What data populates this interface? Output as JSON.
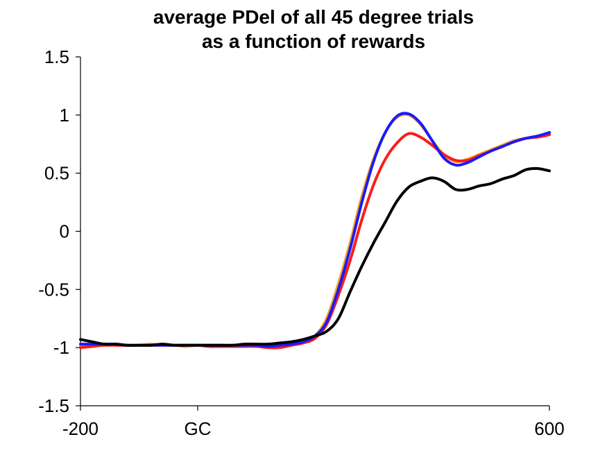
{
  "chart_data": {
    "type": "line",
    "title_lines": [
      "average PDel of all 45 degree trials",
      "as a function of rewards"
    ],
    "xlabel": "",
    "ylabel": "",
    "xlim": [
      -200,
      600
    ],
    "ylim": [
      -1.5,
      1.5
    ],
    "x_ticks": [
      {
        "value": -200,
        "label": "-200"
      },
      {
        "value": 0,
        "label": "GC"
      },
      {
        "value": 600,
        "label": "600"
      }
    ],
    "y_ticks": [
      {
        "value": 1.5,
        "label": "1.5"
      },
      {
        "value": 1,
        "label": "1"
      },
      {
        "value": 0.5,
        "label": "0.5"
      },
      {
        "value": 0,
        "label": "0"
      },
      {
        "value": -0.5,
        "label": "-0.5"
      },
      {
        "value": -1,
        "label": "-1"
      },
      {
        "value": -1.5,
        "label": "-1.5"
      }
    ],
    "grid": false,
    "legend": "none",
    "x": [
      -200,
      -180,
      -160,
      -140,
      -120,
      -100,
      -80,
      -60,
      -40,
      -20,
      0,
      20,
      40,
      60,
      80,
      100,
      120,
      140,
      160,
      180,
      200,
      220,
      240,
      260,
      280,
      300,
      320,
      340,
      360,
      380,
      400,
      420,
      440,
      460,
      480,
      500,
      520,
      540,
      560,
      580,
      600
    ],
    "series": [
      {
        "color": "#f5a21b",
        "values": [
          -0.99,
          -0.98,
          -0.97,
          -0.98,
          -0.98,
          -0.98,
          -0.97,
          -0.98,
          -0.98,
          -0.99,
          -0.98,
          -0.99,
          -0.98,
          -0.99,
          -0.98,
          -0.99,
          -0.99,
          -0.98,
          -0.97,
          -0.95,
          -0.9,
          -0.75,
          -0.45,
          -0.1,
          0.3,
          0.62,
          0.85,
          0.98,
          1.0,
          0.92,
          0.78,
          0.66,
          0.6,
          0.62,
          0.66,
          0.7,
          0.74,
          0.78,
          0.8,
          0.82,
          0.84
        ]
      },
      {
        "color": "#ff1a1a",
        "values": [
          -1.0,
          -0.99,
          -0.98,
          -0.98,
          -0.98,
          -0.98,
          -0.98,
          -0.98,
          -0.98,
          -0.98,
          -0.98,
          -0.99,
          -0.99,
          -0.99,
          -0.99,
          -0.99,
          -1.0,
          -1.0,
          -0.98,
          -0.96,
          -0.92,
          -0.8,
          -0.55,
          -0.25,
          0.1,
          0.4,
          0.62,
          0.76,
          0.84,
          0.81,
          0.74,
          0.66,
          0.61,
          0.61,
          0.65,
          0.69,
          0.73,
          0.77,
          0.8,
          0.81,
          0.83
        ]
      },
      {
        "color": "#1a1aff",
        "values": [
          -0.97,
          -0.97,
          -0.97,
          -0.97,
          -0.98,
          -0.98,
          -0.98,
          -0.98,
          -0.98,
          -0.98,
          -0.98,
          -0.98,
          -0.98,
          -0.98,
          -0.98,
          -0.98,
          -0.99,
          -0.98,
          -0.97,
          -0.95,
          -0.9,
          -0.78,
          -0.5,
          -0.15,
          0.25,
          0.6,
          0.85,
          0.99,
          1.01,
          0.93,
          0.78,
          0.63,
          0.57,
          0.59,
          0.64,
          0.69,
          0.73,
          0.77,
          0.8,
          0.82,
          0.85
        ]
      },
      {
        "color": "#000000",
        "values": [
          -0.93,
          -0.95,
          -0.97,
          -0.97,
          -0.98,
          -0.98,
          -0.98,
          -0.97,
          -0.98,
          -0.98,
          -0.98,
          -0.98,
          -0.98,
          -0.98,
          -0.97,
          -0.97,
          -0.97,
          -0.96,
          -0.95,
          -0.93,
          -0.9,
          -0.86,
          -0.75,
          -0.52,
          -0.3,
          -0.1,
          0.08,
          0.26,
          0.38,
          0.43,
          0.46,
          0.43,
          0.36,
          0.36,
          0.39,
          0.41,
          0.45,
          0.48,
          0.53,
          0.54,
          0.52
        ]
      }
    ]
  }
}
